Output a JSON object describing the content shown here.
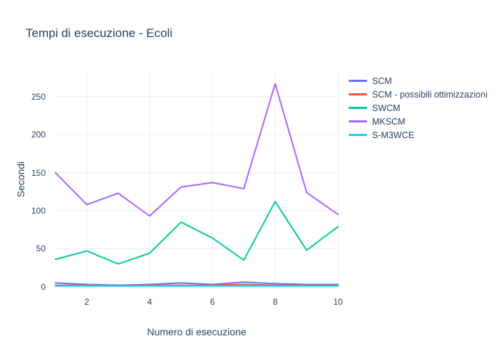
{
  "chart_data": {
    "type": "line",
    "title": "Tempi di esecuzione - Ecoli",
    "xlabel": "Numero di esecuzione",
    "ylabel": "Secondi",
    "x": [
      1,
      2,
      3,
      4,
      5,
      6,
      7,
      8,
      9,
      10
    ],
    "xticks": [
      2,
      4,
      6,
      8,
      10
    ],
    "yticks": [
      0,
      50,
      100,
      150,
      200,
      250
    ],
    "xlim": [
      1,
      10
    ],
    "ylim": [
      0,
      282
    ],
    "grid": true,
    "legend_position": "right",
    "text_color": "#2a3f5f",
    "grid_color": "#ebf0f8",
    "background_color": "#ffffff",
    "series": [
      {
        "name": "SCM",
        "color": "#636efa",
        "values": [
          5,
          3,
          2,
          3,
          5,
          3,
          6,
          4,
          3,
          3
        ]
      },
      {
        "name": "SCM - possibili ottimizzazioni",
        "color": "#ef553b",
        "values": [
          2,
          2,
          1,
          2,
          2,
          2,
          3,
          2,
          2,
          2
        ]
      },
      {
        "name": "SWCM",
        "color": "#00cc96",
        "values": [
          36,
          47,
          30,
          44,
          85,
          64,
          35,
          112,
          48,
          79
        ]
      },
      {
        "name": "MKSCM",
        "color": "#ab63fa",
        "values": [
          150,
          108,
          123,
          93,
          131,
          137,
          129,
          267,
          124,
          95
        ]
      },
      {
        "name": "S-M3WCE",
        "color": "#19d3f3",
        "values": [
          1,
          1,
          1,
          1,
          1,
          1,
          1,
          1,
          1,
          1
        ]
      }
    ]
  }
}
